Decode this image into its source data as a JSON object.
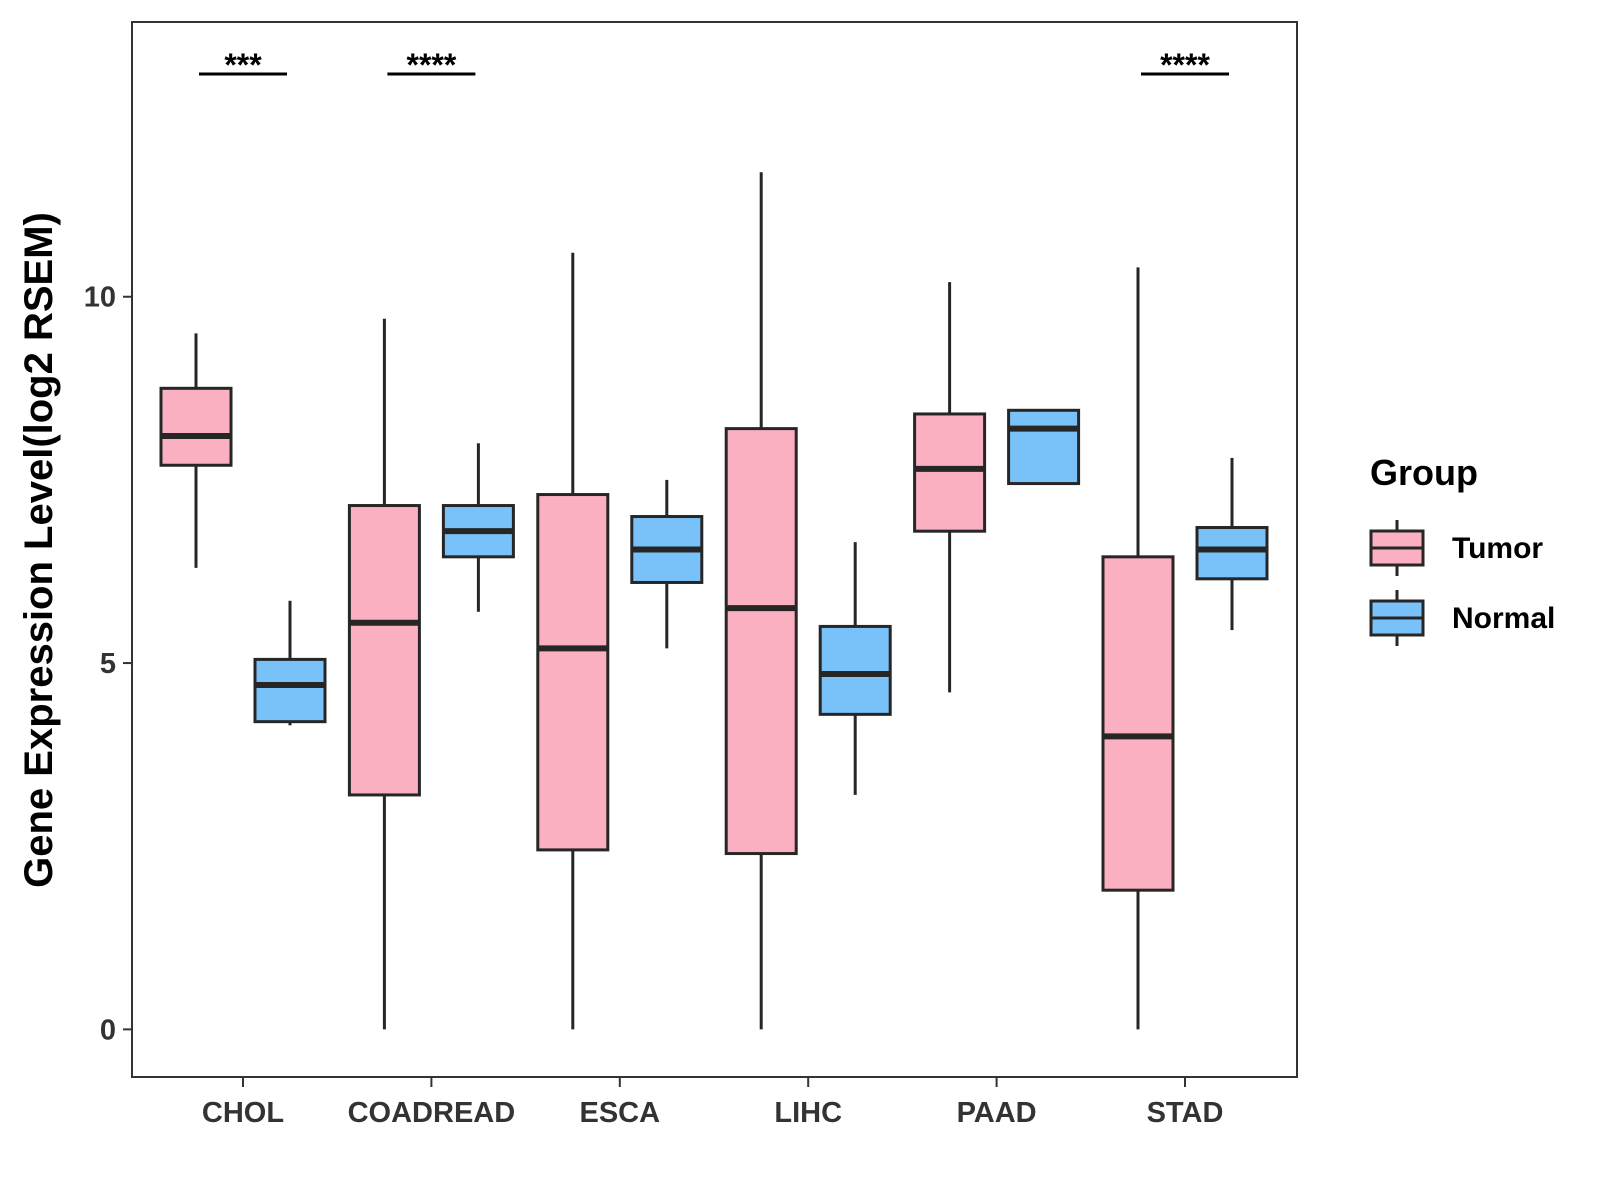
{
  "chart_data": {
    "type": "boxplot",
    "title": "",
    "xlabel": "",
    "ylabel": "Gene Expression Level(log2 RSEM)",
    "ylim": [
      -0.65,
      13.75
    ],
    "yticks": [
      0,
      5,
      10
    ],
    "categories": [
      "CHOL",
      "COADREAD",
      "ESCA",
      "LIHC",
      "PAAD",
      "STAD"
    ],
    "legend": {
      "title": "Group",
      "position": "right",
      "entries": [
        "Tumor",
        "Normal"
      ]
    },
    "series": [
      {
        "name": "Tumor",
        "color": "#FBB0C1",
        "boxes": [
          {
            "category": "CHOL",
            "whisker_low": 6.3,
            "q1": 7.7,
            "median": 8.1,
            "q3": 8.75,
            "whisker_high": 9.5
          },
          {
            "category": "COADREAD",
            "whisker_low": 0.0,
            "q1": 3.2,
            "median": 5.55,
            "q3": 7.15,
            "whisker_high": 9.7
          },
          {
            "category": "ESCA",
            "whisker_low": 0.0,
            "q1": 2.45,
            "median": 5.2,
            "q3": 7.3,
            "whisker_high": 10.6
          },
          {
            "category": "LIHC",
            "whisker_low": 0.0,
            "q1": 2.4,
            "median": 5.75,
            "q3": 8.2,
            "whisker_high": 11.7
          },
          {
            "category": "PAAD",
            "whisker_low": 4.6,
            "q1": 6.8,
            "median": 7.65,
            "q3": 8.4,
            "whisker_high": 10.2
          },
          {
            "category": "STAD",
            "whisker_low": 0.0,
            "q1": 1.9,
            "median": 4.0,
            "q3": 6.45,
            "whisker_high": 10.4
          }
        ]
      },
      {
        "name": "Normal",
        "color": "#79C1F9",
        "boxes": [
          {
            "category": "CHOL",
            "whisker_low": 4.15,
            "q1": 4.2,
            "median": 4.7,
            "q3": 5.05,
            "whisker_high": 5.85
          },
          {
            "category": "COADREAD",
            "whisker_low": 5.7,
            "q1": 6.45,
            "median": 6.8,
            "q3": 7.15,
            "whisker_high": 8.0
          },
          {
            "category": "ESCA",
            "whisker_low": 5.2,
            "q1": 6.1,
            "median": 6.55,
            "q3": 7.0,
            "whisker_high": 7.5
          },
          {
            "category": "LIHC",
            "whisker_low": 3.2,
            "q1": 4.3,
            "median": 4.85,
            "q3": 5.5,
            "whisker_high": 6.65
          },
          {
            "category": "PAAD",
            "whisker_low": 7.45,
            "q1": 7.45,
            "median": 8.2,
            "q3": 8.45,
            "whisker_high": 8.45
          },
          {
            "category": "STAD",
            "whisker_low": 5.45,
            "q1": 6.15,
            "median": 6.55,
            "q3": 6.85,
            "whisker_high": 7.8
          }
        ]
      }
    ],
    "significance": [
      {
        "category": "CHOL",
        "label": "***"
      },
      {
        "category": "COADREAD",
        "label": "****"
      },
      {
        "category": "STAD",
        "label": "****"
      }
    ]
  }
}
